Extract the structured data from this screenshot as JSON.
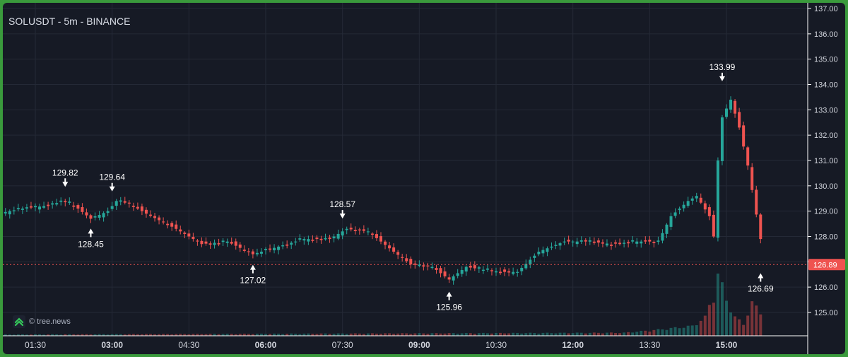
{
  "header": {
    "title": "SOLUSDT - 5m - BINANCE"
  },
  "watermark": {
    "text": "© tree.news",
    "icon": "tree-news-logo-icon"
  },
  "colors": {
    "background": "#161a25",
    "frame": "#3a9a3c",
    "up": "#26a69a",
    "down": "#ef5350",
    "grid": "#242936",
    "axis_text": "#d1d4dc",
    "price_line": "#ef5350"
  },
  "chart_data": {
    "type": "candlestick",
    "title": "SOLUSDT - 5m - BINANCE",
    "x_ticks": [
      {
        "t": "01:30",
        "bold": false
      },
      {
        "t": "03:00",
        "bold": true
      },
      {
        "t": "04:30",
        "bold": false
      },
      {
        "t": "06:00",
        "bold": true
      },
      {
        "t": "07:30",
        "bold": false
      },
      {
        "t": "09:00",
        "bold": true
      },
      {
        "t": "10:30",
        "bold": false
      },
      {
        "t": "12:00",
        "bold": true
      },
      {
        "t": "13:30",
        "bold": false
      },
      {
        "t": "15:00",
        "bold": true
      }
    ],
    "y_ticks": [
      "137.00",
      "136.00",
      "135.00",
      "134.00",
      "133.00",
      "132.00",
      "131.00",
      "130.00",
      "129.00",
      "128.00",
      "127.00",
      "126.00",
      "125.00"
    ],
    "ylim": [
      124.3,
      137.2
    ],
    "last_price": "126.89",
    "markers": [
      {
        "label": "129.82",
        "type": "high",
        "time": "02:05"
      },
      {
        "label": "128.45",
        "type": "low",
        "time": "02:35"
      },
      {
        "label": "129.64",
        "type": "high",
        "time": "03:00"
      },
      {
        "label": "127.02",
        "type": "low",
        "time": "05:45"
      },
      {
        "label": "128.57",
        "type": "high",
        "time": "07:30"
      },
      {
        "label": "125.96",
        "type": "low",
        "time": "09:35"
      },
      {
        "label": "133.99",
        "type": "high",
        "time": "14:55"
      },
      {
        "label": "126.69",
        "type": "low",
        "time": "15:40"
      }
    ],
    "price_path": [
      [
        "00:45",
        128.9
      ],
      [
        "01:15",
        129.1
      ],
      [
        "01:40",
        129.2
      ],
      [
        "02:05",
        129.4
      ],
      [
        "02:20",
        129.1
      ],
      [
        "02:35",
        128.7
      ],
      [
        "02:55",
        129.0
      ],
      [
        "03:05",
        129.4
      ],
      [
        "03:20",
        129.3
      ],
      [
        "03:40",
        128.9
      ],
      [
        "04:15",
        128.3
      ],
      [
        "04:45",
        127.7
      ],
      [
        "05:15",
        127.8
      ],
      [
        "05:45",
        127.3
      ],
      [
        "06:15",
        127.6
      ],
      [
        "06:45",
        127.9
      ],
      [
        "07:15",
        127.9
      ],
      [
        "07:35",
        128.3
      ],
      [
        "08:00",
        128.2
      ],
      [
        "08:30",
        127.4
      ],
      [
        "08:50",
        126.9
      ],
      [
        "09:15",
        126.8
      ],
      [
        "09:35",
        126.3
      ],
      [
        "09:55",
        126.8
      ],
      [
        "10:30",
        126.6
      ],
      [
        "10:55",
        126.6
      ],
      [
        "11:20",
        127.4
      ],
      [
        "11:50",
        127.8
      ],
      [
        "12:20",
        127.8
      ],
      [
        "12:45",
        127.7
      ],
      [
        "13:15",
        127.8
      ],
      [
        "13:40",
        127.8
      ],
      [
        "13:55",
        128.8
      ],
      [
        "14:15",
        129.4
      ],
      [
        "14:25",
        129.6
      ],
      [
        "14:40",
        128.8
      ],
      [
        "14:45",
        128.0
      ],
      [
        "14:50",
        131.0
      ],
      [
        "14:55",
        132.7
      ],
      [
        "15:05",
        133.4
      ],
      [
        "15:15",
        132.3
      ],
      [
        "15:25",
        130.8
      ],
      [
        "15:40",
        127.9
      ],
      [
        "15:43",
        126.9
      ]
    ],
    "volume_max": 100,
    "volume_path": [
      [
        "00:45",
        2
      ],
      [
        "13:00",
        5
      ],
      [
        "13:40",
        10
      ],
      [
        "14:20",
        16
      ],
      [
        "14:35",
        30
      ],
      [
        "14:45",
        70
      ],
      [
        "14:50",
        100
      ],
      [
        "15:00",
        60
      ],
      [
        "15:10",
        30
      ],
      [
        "15:20",
        20
      ],
      [
        "15:30",
        52
      ],
      [
        "15:43",
        40
      ]
    ]
  }
}
